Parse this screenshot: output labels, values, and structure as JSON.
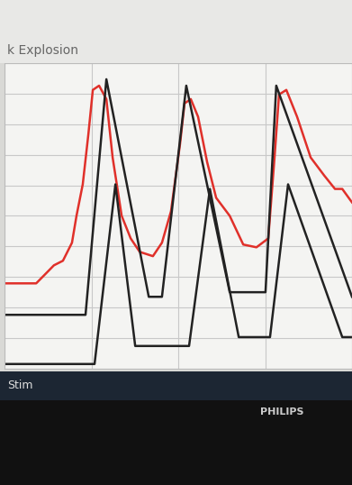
{
  "chart_data": {
    "type": "line",
    "title": "k Explosion",
    "annotations": [
      "Stim",
      "PHILIPS"
    ],
    "xlim": [
      0,
      100
    ],
    "ylim": [
      0,
      100
    ],
    "xticks": [
      0,
      25,
      50,
      75,
      100
    ],
    "yticks": [
      0,
      10,
      20,
      30,
      40,
      50,
      60,
      70,
      80,
      90,
      100
    ],
    "grid": true,
    "tick_labels": false,
    "series": [
      {
        "color": "#e0302a",
        "x": [
          0,
          9.1,
          11.7,
          14.2,
          16.8,
          19.4,
          20.7,
          22.5,
          24.1,
          25.4,
          27.2,
          29.3,
          31.1,
          33.7,
          36.3,
          38.9,
          42.7,
          45.3,
          47.9,
          50.5,
          51.8,
          53.6,
          55.7,
          58.3,
          60.9,
          64.8,
          68.7,
          72.5,
          75.9,
          77.7,
          79.0,
          81.1,
          84.2,
          88.1,
          92.0,
          95.1,
          97.2,
          100
        ],
        "values": [
          27.9,
          27.9,
          30.9,
          33.8,
          35.3,
          41.2,
          50.0,
          60.3,
          76.5,
          91.2,
          92.6,
          88.2,
          69.1,
          50.0,
          42.6,
          38.2,
          36.8,
          41.2,
          51.5,
          73.5,
          86.8,
          88.2,
          82.4,
          67.6,
          55.9,
          50.0,
          40.6,
          39.7,
          42.6,
          69.1,
          89.7,
          91.2,
          82.4,
          69.1,
          63.2,
          58.8,
          58.8,
          54.4
        ]
      },
      {
        "color": "#222222",
        "x": [
          0,
          23.3,
          29.3,
          41.5,
          45.3,
          52.3,
          64.8,
          75.1,
          78.2,
          100
        ],
        "values": [
          17.6,
          17.6,
          94.7,
          23.5,
          23.5,
          92.6,
          25.0,
          25.0,
          92.6,
          23.5
        ]
      },
      {
        "color": "#222222",
        "x": [
          0,
          25.9,
          31.9,
          37.6,
          53.1,
          59.1,
          67.4,
          76.4,
          81.6,
          97.2,
          100
        ],
        "values": [
          1.5,
          1.5,
          60.3,
          7.4,
          7.4,
          58.8,
          10.3,
          10.3,
          60.3,
          10.3,
          10.3
        ]
      }
    ]
  }
}
